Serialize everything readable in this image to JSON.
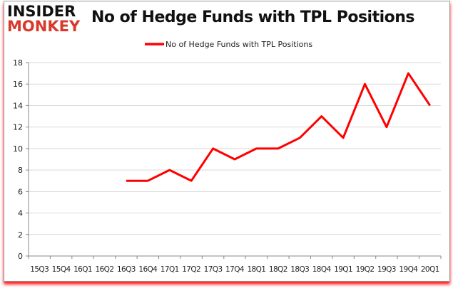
{
  "logo": {
    "line1": "INSIDER",
    "line2": "MONKEY"
  },
  "chart_data": {
    "type": "line",
    "title": "No of Hedge Funds with TPL Positions",
    "categories": [
      "15Q3",
      "15Q4",
      "16Q1",
      "16Q2",
      "16Q3",
      "16Q4",
      "17Q1",
      "17Q2",
      "17Q3",
      "17Q4",
      "18Q1",
      "18Q2",
      "18Q3",
      "18Q4",
      "19Q1",
      "19Q2",
      "19Q3",
      "19Q4",
      "20Q1"
    ],
    "series": [
      {
        "name": "No of Hedge Funds with TPL Positions",
        "color": "#ff0000",
        "values": [
          null,
          null,
          null,
          null,
          7,
          7,
          8,
          7,
          10,
          9,
          10,
          10,
          11,
          13,
          11,
          16,
          12,
          17,
          14
        ]
      }
    ],
    "ylim": [
      0,
      18
    ],
    "yticks": [
      0,
      2,
      4,
      6,
      8,
      10,
      12,
      14,
      16,
      18
    ],
    "grid": true,
    "legend": "top-center"
  }
}
